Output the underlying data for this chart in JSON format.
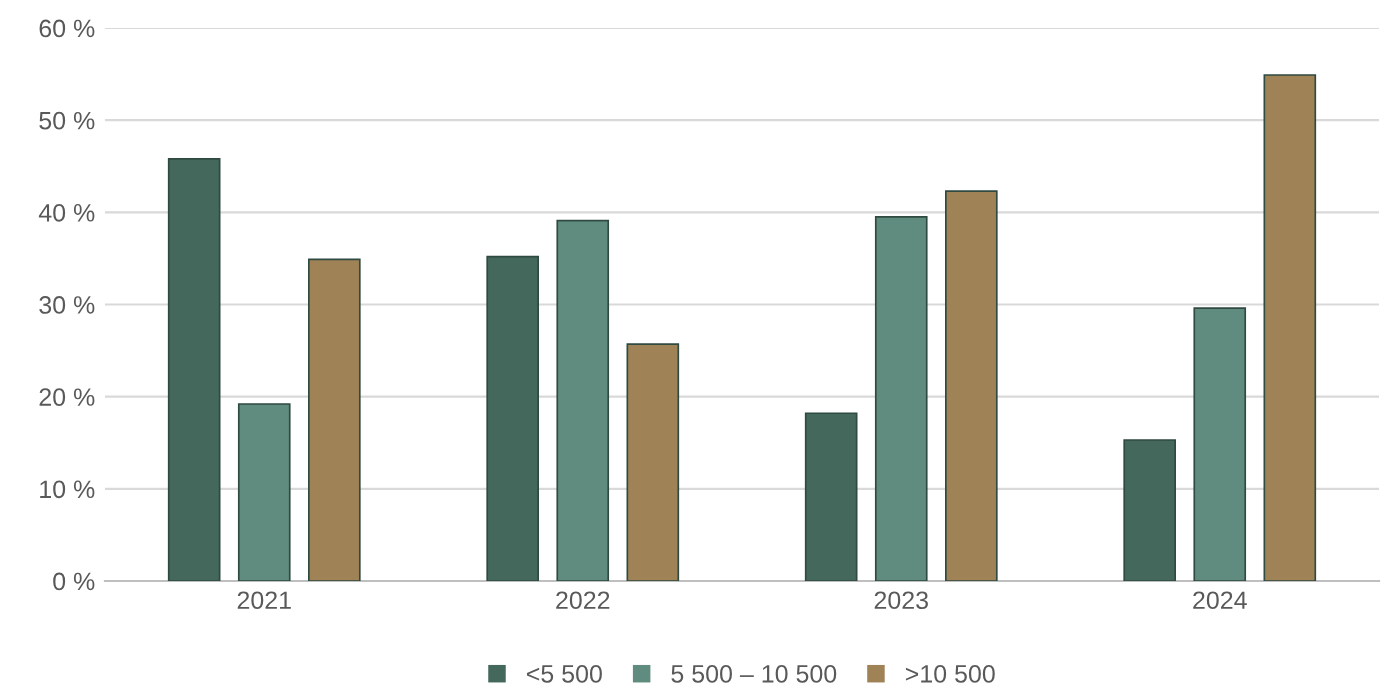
{
  "chart_data": {
    "type": "bar",
    "categories": [
      "2021",
      "2022",
      "2023",
      "2024"
    ],
    "series": [
      {
        "name": "<5 500",
        "color": "#45685c",
        "values": [
          45.8,
          35.2,
          18.2,
          15.3
        ]
      },
      {
        "name": "5 500 – 10 500",
        "color": "#5f8c7e",
        "values": [
          19.2,
          39.1,
          39.5,
          29.6
        ]
      },
      {
        "name": ">10 500",
        "color": "#a08257",
        "values": [
          34.9,
          25.7,
          42.3,
          54.9
        ]
      }
    ],
    "ylim": [
      0,
      60
    ],
    "yticks": [
      {
        "value": 0,
        "label": "0 %"
      },
      {
        "value": 10,
        "label": "10 %"
      },
      {
        "value": 20,
        "label": "20 %"
      },
      {
        "value": 30,
        "label": "30 %"
      },
      {
        "value": 40,
        "label": "40 %"
      },
      {
        "value": 50,
        "label": "50 %"
      },
      {
        "value": 60,
        "label": "60 %"
      }
    ],
    "grid": "y",
    "legend": "bottom"
  }
}
